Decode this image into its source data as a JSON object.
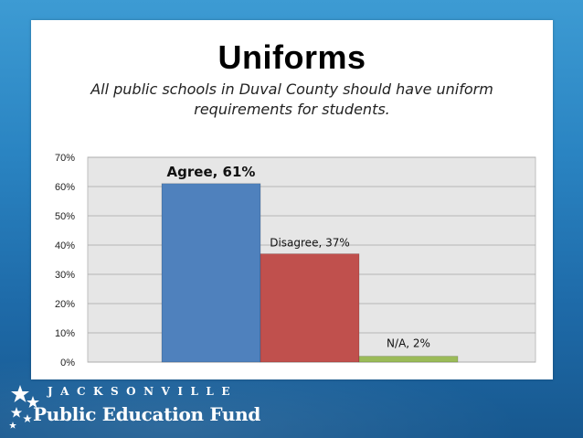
{
  "chart_data": {
    "type": "bar",
    "title": "Uniforms",
    "subtitle": "All public schools in Duval County should have uniform requirements for students.",
    "categories": [
      "Agree",
      "Disagree",
      "N/A"
    ],
    "values": [
      61,
      37,
      2
    ],
    "data_labels": [
      "Agree, 61%",
      "Disagree, 37%",
      "N/A, 2%"
    ],
    "colors": [
      "#4f81bd",
      "#c0504d",
      "#9bbb59"
    ],
    "ylim": [
      0,
      70
    ],
    "yticks": [
      "0%",
      "10%",
      "20%",
      "30%",
      "40%",
      "50%",
      "60%",
      "70%"
    ],
    "grid": true,
    "plot_background": "#e6e6e6"
  },
  "logo": {
    "top_text": "JACKSONVILLE",
    "bottom_text": "Public Education Fund"
  }
}
